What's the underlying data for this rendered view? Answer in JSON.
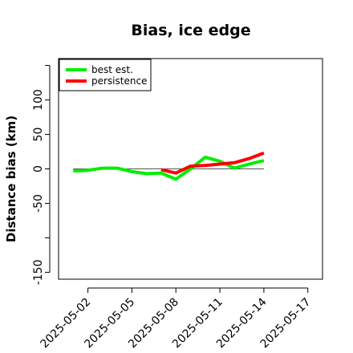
{
  "chart_data": {
    "type": "line",
    "title": "Bias, ice edge",
    "xlabel": "",
    "ylabel": "Distance bias (km)",
    "x_axis_type": "date",
    "xlim": [
      "2025-04-30",
      "2025-05-18"
    ],
    "x_ticks": [
      "2025-05-02",
      "2025-05-05",
      "2025-05-08",
      "2025-05-11",
      "2025-05-14",
      "2025-05-17"
    ],
    "ylim": [
      -160,
      160
    ],
    "y_ticks": [
      -150,
      -50,
      0,
      50,
      100
    ],
    "y_tick_marks": [
      -150,
      -100,
      -50,
      0,
      50,
      100,
      150
    ],
    "reference_line": {
      "y": 0,
      "x_from": "2025-05-01",
      "x_to": "2025-05-14",
      "color": "#555555"
    },
    "grid": false,
    "legend": {
      "position": "top-left"
    },
    "series": [
      {
        "name": "best est.",
        "color": "#00ee00",
        "points": [
          {
            "x": "2025-05-01",
            "y": -3
          },
          {
            "x": "2025-05-02",
            "y": -2
          },
          {
            "x": "2025-05-03",
            "y": 1
          },
          {
            "x": "2025-05-04",
            "y": 1
          },
          {
            "x": "2025-05-05",
            "y": -4
          },
          {
            "x": "2025-05-06",
            "y": -7
          },
          {
            "x": "2025-05-07",
            "y": -6
          },
          {
            "x": "2025-05-08",
            "y": -15
          },
          {
            "x": "2025-05-09",
            "y": 0
          },
          {
            "x": "2025-05-10",
            "y": 17
          },
          {
            "x": "2025-05-11",
            "y": 11
          },
          {
            "x": "2025-05-12",
            "y": 1
          },
          {
            "x": "2025-05-13",
            "y": 7
          },
          {
            "x": "2025-05-14",
            "y": 12
          }
        ]
      },
      {
        "name": "persistence",
        "color": "#ff0000",
        "points": [
          {
            "x": "2025-05-07",
            "y": -1
          },
          {
            "x": "2025-05-08",
            "y": -6
          },
          {
            "x": "2025-05-09",
            "y": 4
          },
          {
            "x": "2025-05-10",
            "y": 5
          },
          {
            "x": "2025-05-11",
            "y": 7
          },
          {
            "x": "2025-05-12",
            "y": 9
          },
          {
            "x": "2025-05-13",
            "y": 15
          },
          {
            "x": "2025-05-14",
            "y": 23
          }
        ]
      }
    ]
  }
}
